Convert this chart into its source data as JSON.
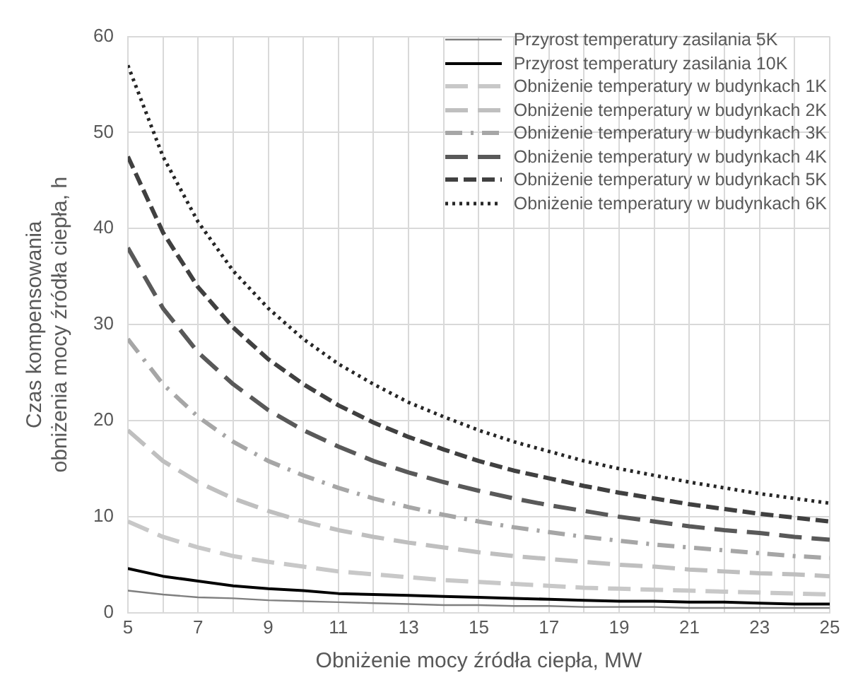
{
  "chart_data": {
    "type": "line",
    "xlabel": "Obniżenie mocy źródła ciepła, MW",
    "ylabel": "Czas kompensowania\nobniżenia mocy źródła ciepła, h",
    "x": [
      5,
      6,
      7,
      8,
      9,
      10,
      11,
      12,
      13,
      14,
      15,
      16,
      17,
      18,
      19,
      20,
      21,
      22,
      23,
      24,
      25
    ],
    "xlim": [
      5,
      25
    ],
    "xticks": [
      5,
      {
        "value": 6,
        "label": null
      },
      7,
      {
        "value": 8,
        "label": null
      },
      9,
      {
        "value": 10,
        "label": null
      },
      11,
      {
        "value": 12,
        "label": null
      },
      13,
      {
        "value": 14,
        "label": null
      },
      15,
      {
        "value": 16,
        "label": null
      },
      17,
      {
        "value": 18,
        "label": null
      },
      19,
      {
        "value": 20,
        "label": null
      },
      21,
      {
        "value": 22,
        "label": null
      },
      23,
      {
        "value": 24,
        "label": null
      },
      25
    ],
    "ylim": [
      0,
      60
    ],
    "yticks": [
      0,
      10,
      20,
      30,
      40,
      50,
      60
    ],
    "grid": true,
    "legend": "top right",
    "marker": "none",
    "series": [
      {
        "name": "Przyrost temperatury zasilania 5K",
        "color": "#7f7f7f",
        "line_style": "solid",
        "values": [
          2.3,
          1.9,
          1.6,
          1.5,
          1.3,
          1.2,
          1.1,
          1.0,
          0.9,
          0.8,
          0.8,
          0.7,
          0.7,
          0.6,
          0.6,
          0.6,
          0.5,
          0.5,
          0.5,
          0.5,
          0.5
        ]
      },
      {
        "name": "Przyrost temperatury zasilania 10K",
        "color": "#000000",
        "line_style": "solid",
        "values": [
          4.6,
          3.8,
          3.3,
          2.8,
          2.5,
          2.3,
          2.0,
          1.9,
          1.8,
          1.7,
          1.6,
          1.5,
          1.4,
          1.3,
          1.2,
          1.2,
          1.1,
          1.1,
          1.0,
          0.9,
          0.9
        ]
      },
      {
        "name": "Obniżenie temperatury w budynkach 1K",
        "color": "#c8c8c8",
        "line_style": "dashed",
        "values": [
          9.5,
          7.9,
          6.8,
          5.9,
          5.3,
          4.8,
          4.3,
          4.0,
          3.7,
          3.4,
          3.2,
          3.0,
          2.8,
          2.6,
          2.5,
          2.4,
          2.3,
          2.2,
          2.1,
          2.0,
          1.9
        ]
      },
      {
        "name": "Obniżenie temperatury w budynkach 2K",
        "color": "#bfbfbf",
        "line_style": "dashed",
        "values": [
          19,
          15.8,
          13.6,
          11.9,
          10.6,
          9.5,
          8.6,
          7.9,
          7.3,
          6.8,
          6.3,
          5.9,
          5.6,
          5.3,
          5.0,
          4.8,
          4.5,
          4.3,
          4.1,
          4.0,
          3.8
        ]
      },
      {
        "name": "Obniżenie temperatury w budynkach 3K",
        "color": "#a6a6a6",
        "line_style": "dashed",
        "values": [
          28.5,
          23.8,
          20.4,
          17.8,
          15.8,
          14.3,
          13.0,
          11.9,
          11.0,
          10.2,
          9.5,
          8.9,
          8.4,
          7.9,
          7.5,
          7.1,
          6.8,
          6.5,
          6.2,
          5.9,
          5.7
        ]
      },
      {
        "name": "Obniżenie temperatury w budynkach 4K",
        "color": "#595959",
        "line_style": "dashed",
        "values": [
          38,
          31.7,
          27.1,
          23.8,
          21.1,
          19,
          17.3,
          15.8,
          14.6,
          13.6,
          12.7,
          11.9,
          11.2,
          10.6,
          10,
          9.5,
          9,
          8.6,
          8.3,
          7.9,
          7.6
        ]
      },
      {
        "name": "Obniżenie temperatury w budynkach 5K",
        "color": "#404040",
        "line_style": "dashed",
        "values": [
          47.5,
          39.6,
          33.9,
          29.7,
          26.4,
          23.8,
          21.6,
          19.8,
          18.3,
          17,
          15.8,
          14.8,
          14,
          13.2,
          12.5,
          11.9,
          11.3,
          10.8,
          10.3,
          9.9,
          9.5
        ]
      },
      {
        "name": "Obniżenie temperatury w budynkach 6K",
        "color": "#262626",
        "line_style": "dotted",
        "values": [
          57,
          47.5,
          40.7,
          35.6,
          31.7,
          28.5,
          25.9,
          23.8,
          21.9,
          20.4,
          19,
          17.8,
          16.8,
          15.8,
          15,
          14.3,
          13.6,
          13,
          12.4,
          11.9,
          11.4
        ]
      }
    ]
  }
}
